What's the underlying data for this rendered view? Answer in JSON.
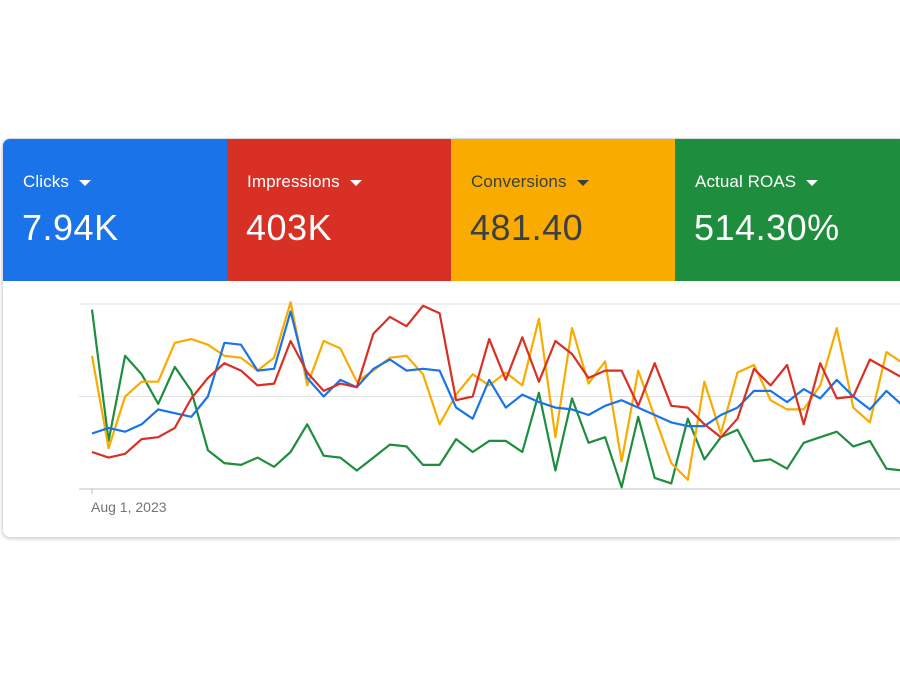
{
  "tiles": [
    {
      "label": "Clicks",
      "value": "7.94K",
      "bg": "#1a73e8",
      "fg": "#ffffff",
      "line": "#1a73e8"
    },
    {
      "label": "Impressions",
      "value": "403K",
      "bg": "#d93025",
      "fg": "#ffffff",
      "line": "#d93025"
    },
    {
      "label": "Conversions",
      "value": "481.40",
      "bg": "#f9ab00",
      "fg": "#3c4043",
      "line": "#f9ab00"
    },
    {
      "label": "Actual ROAS",
      "value": "514.30%",
      "bg": "#1e8e3e",
      "fg": "#ffffff",
      "line": "#1e8e3e"
    }
  ],
  "chart_data": {
    "type": "line",
    "x_start_label": "Aug 1, 2023",
    "y_range": [
      0,
      100
    ],
    "grid": true,
    "legend": "none",
    "series": [
      {
        "name": "Clicks",
        "color": "#1a73e8",
        "values": [
          30,
          33,
          31,
          35,
          43,
          41,
          39,
          50,
          79,
          78,
          64,
          65,
          96,
          60,
          50,
          59,
          55,
          65,
          70,
          64,
          65,
          64,
          44,
          38,
          59,
          44,
          51,
          47,
          44,
          43,
          40,
          45,
          48,
          44,
          40,
          36,
          34,
          34,
          40,
          44,
          53,
          53,
          47,
          54,
          49,
          59,
          50,
          43,
          53,
          45
        ]
      },
      {
        "name": "Impressions",
        "color": "#d93025",
        "values": [
          20,
          17,
          19,
          27,
          28,
          33,
          49,
          60,
          68,
          64,
          56,
          57,
          80,
          63,
          53,
          57,
          55,
          84,
          93,
          88,
          99,
          95,
          48,
          50,
          81,
          59,
          82,
          58,
          80,
          73,
          60,
          64,
          64,
          45,
          68,
          45,
          44,
          35,
          28,
          38,
          65,
          56,
          67,
          35,
          68,
          49,
          50,
          70,
          65,
          60
        ]
      },
      {
        "name": "Conversions",
        "color": "#f9ab00",
        "values": [
          72,
          22,
          50,
          58,
          58,
          79,
          81,
          78,
          72,
          71,
          64,
          71,
          101,
          56,
          80,
          76,
          58,
          64,
          71,
          72,
          62,
          35,
          51,
          62,
          56,
          63,
          56,
          92,
          28,
          87,
          57,
          69,
          15,
          64,
          39,
          14,
          5,
          58,
          30,
          63,
          67,
          48,
          43,
          43,
          56,
          87,
          44,
          36,
          74,
          68
        ]
      },
      {
        "name": "Actual ROAS",
        "color": "#1e8e3e",
        "values": [
          97,
          26,
          72,
          62,
          46,
          66,
          53,
          21,
          14,
          13,
          17,
          12,
          20,
          35,
          18,
          17,
          10,
          17,
          24,
          23,
          13,
          13,
          27,
          20,
          26,
          26,
          20,
          52,
          10,
          49,
          25,
          28,
          1,
          39,
          6,
          3,
          38,
          16,
          28,
          32,
          15,
          16,
          11,
          25,
          28,
          31,
          23,
          26,
          11,
          10
        ]
      }
    ]
  }
}
